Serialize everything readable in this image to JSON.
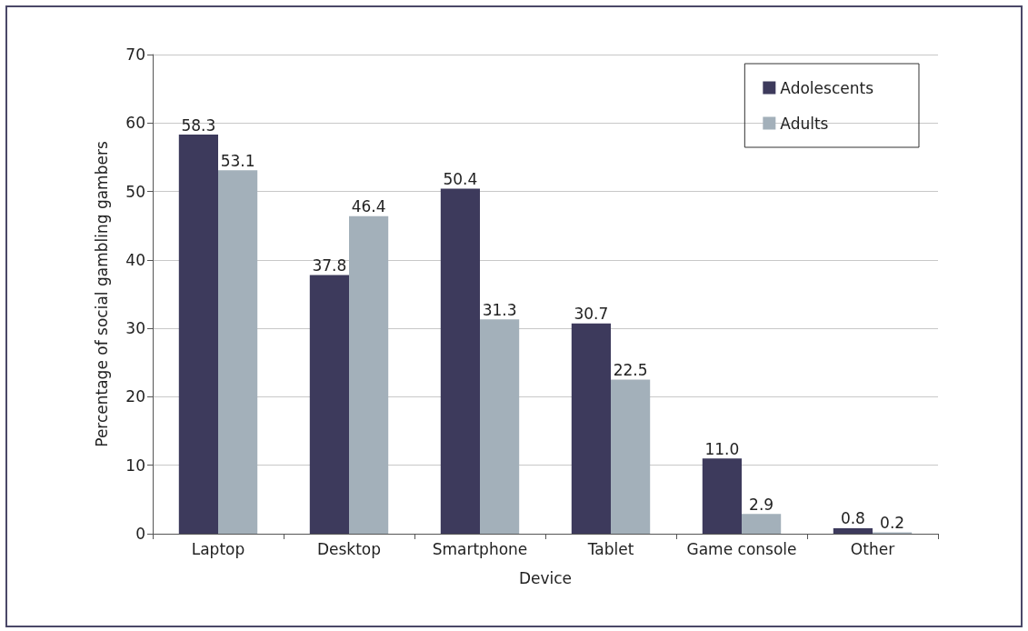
{
  "chart_data": {
    "type": "bar",
    "xlabel": "Device",
    "ylabel": "Percentage of social gambling gambers",
    "categories": [
      "Laptop",
      "Desktop",
      "Smartphone",
      "Tablet",
      "Game console",
      "Other"
    ],
    "series": [
      {
        "name": "Adolescents",
        "color": "#3d3a5c",
        "values": [
          58.3,
          37.8,
          50.4,
          30.7,
          11.0,
          0.8
        ],
        "value_labels": [
          "58.3",
          "37.8",
          "50.4",
          "30.7",
          "11.0",
          "0.8"
        ]
      },
      {
        "name": "Adults",
        "color": "#a3b0ba",
        "values": [
          53.1,
          46.4,
          31.3,
          22.5,
          2.9,
          0.2
        ],
        "value_labels": [
          "53.1",
          "46.4",
          "31.3",
          "22.5",
          "2.9",
          "0.2"
        ]
      }
    ],
    "ylim": [
      0,
      70
    ],
    "yticks": [
      0,
      10,
      20,
      30,
      40,
      50,
      60,
      70
    ],
    "grid": "y",
    "legend": "top right"
  }
}
